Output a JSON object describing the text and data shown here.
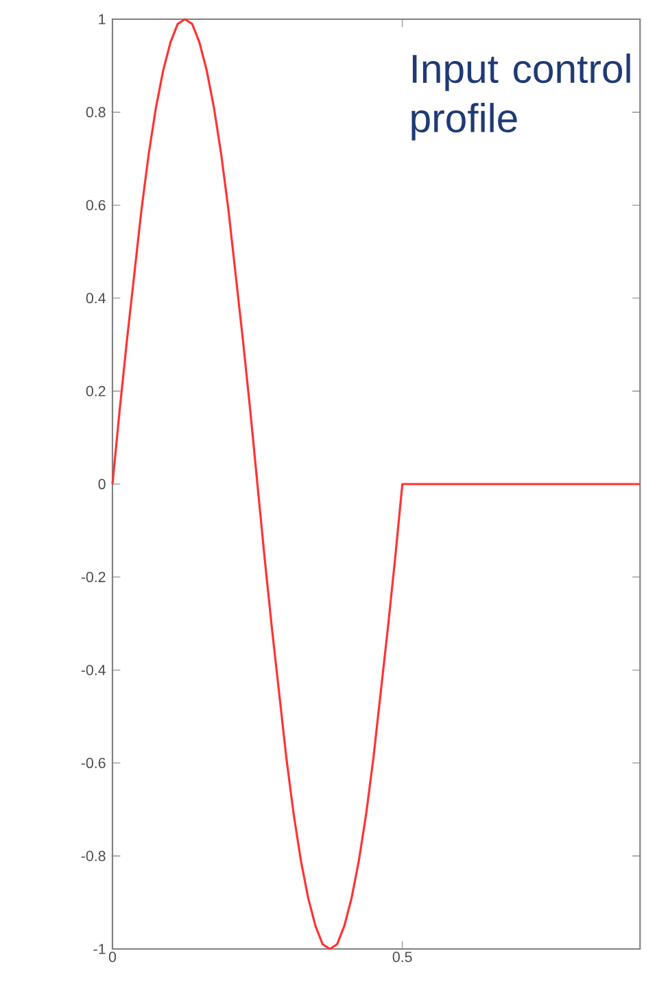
{
  "chart_data": {
    "type": "line",
    "annotations": [
      "Input control profile"
    ],
    "x": [
      0,
      0.0125,
      0.025,
      0.0375,
      0.05,
      0.0625,
      0.075,
      0.0875,
      0.1,
      0.1125,
      0.125,
      0.1375,
      0.15,
      0.1625,
      0.175,
      0.1875,
      0.2,
      0.2125,
      0.225,
      0.2375,
      0.25,
      0.2625,
      0.275,
      0.2875,
      0.3,
      0.3125,
      0.325,
      0.3375,
      0.35,
      0.3625,
      0.375,
      0.3875,
      0.4,
      0.4125,
      0.425,
      0.4375,
      0.45,
      0.4625,
      0.475,
      0.4875,
      0.5,
      0.91
    ],
    "series": [
      {
        "color": "#ff3333",
        "values": [
          0,
          0.16,
          0.31,
          0.45,
          0.59,
          0.71,
          0.81,
          0.89,
          0.95,
          0.99,
          1,
          0.99,
          0.95,
          0.89,
          0.81,
          0.71,
          0.59,
          0.45,
          0.31,
          0.16,
          0,
          -0.16,
          -0.31,
          -0.45,
          -0.59,
          -0.71,
          -0.81,
          -0.89,
          -0.95,
          -0.99,
          -1,
          -0.99,
          -0.95,
          -0.89,
          -0.81,
          -0.71,
          -0.59,
          -0.45,
          -0.31,
          -0.16,
          0,
          0
        ]
      }
    ],
    "xlim": [
      0,
      0.91
    ],
    "xticks": [
      0,
      0.5
    ],
    "ylim": [
      -1,
      1
    ],
    "yticks": [
      -1,
      -0.8,
      -0.6,
      -0.4,
      -0.2,
      0,
      0.2,
      0.4,
      0.6,
      0.8,
      1
    ],
    "marker": "none",
    "line_style": "solid"
  }
}
